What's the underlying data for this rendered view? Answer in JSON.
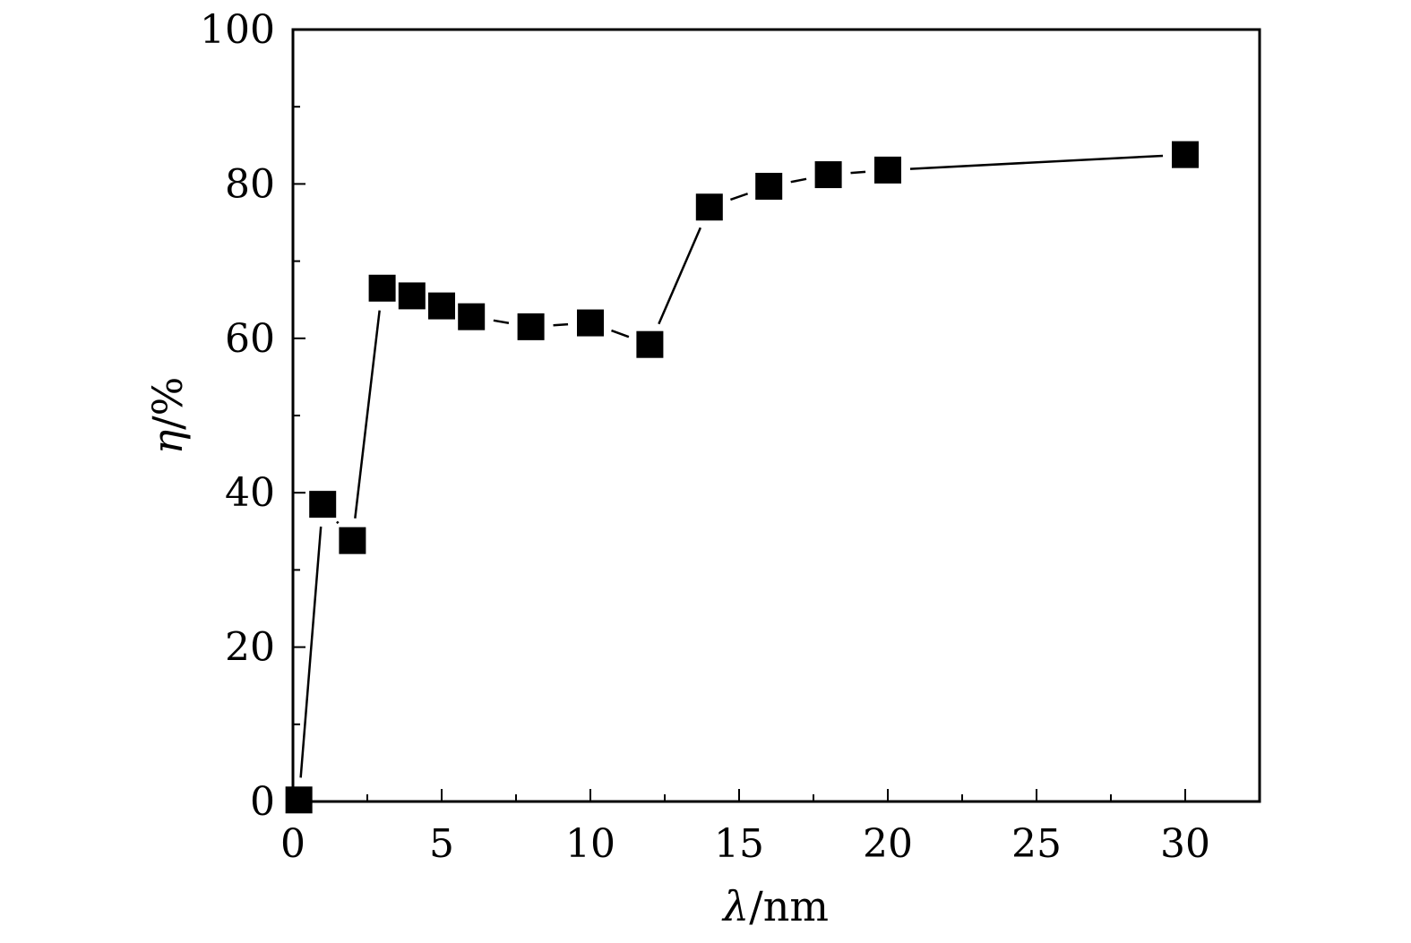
{
  "chart_data": {
    "type": "line",
    "x": [
      0.2,
      1,
      2,
      3,
      4,
      5,
      6,
      8,
      10,
      12,
      14,
      16,
      18,
      20,
      30
    ],
    "series": [
      {
        "values": [
          0.2,
          38.5,
          33.8,
          66.5,
          65.5,
          64.2,
          62.8,
          61.5,
          62.0,
          59.2,
          77.0,
          79.7,
          81.2,
          81.8,
          83.8
        ]
      }
    ],
    "xlabel": {
      "symbol": "λ",
      "unit": "/nm"
    },
    "ylabel": {
      "symbol": "η",
      "unit": "/%"
    },
    "xlim": [
      0,
      32.5
    ],
    "ylim": [
      0,
      100
    ],
    "xticks": [
      0,
      5,
      10,
      15,
      20,
      25,
      30
    ],
    "xtick_labels": [
      "0",
      "5",
      "10",
      "15",
      "20",
      "25",
      "30"
    ],
    "xminor": [
      2.5,
      7.5,
      12.5,
      17.5,
      22.5,
      27.5
    ],
    "yticks": [
      0,
      20,
      40,
      60,
      80,
      100
    ],
    "ytick_labels": [
      "0",
      "20",
      "40",
      "60",
      "80",
      "100"
    ],
    "yminor": [
      10,
      30,
      50,
      70,
      90
    ],
    "marker": "square",
    "grid": false,
    "legend": "none",
    "color": "#000000"
  }
}
